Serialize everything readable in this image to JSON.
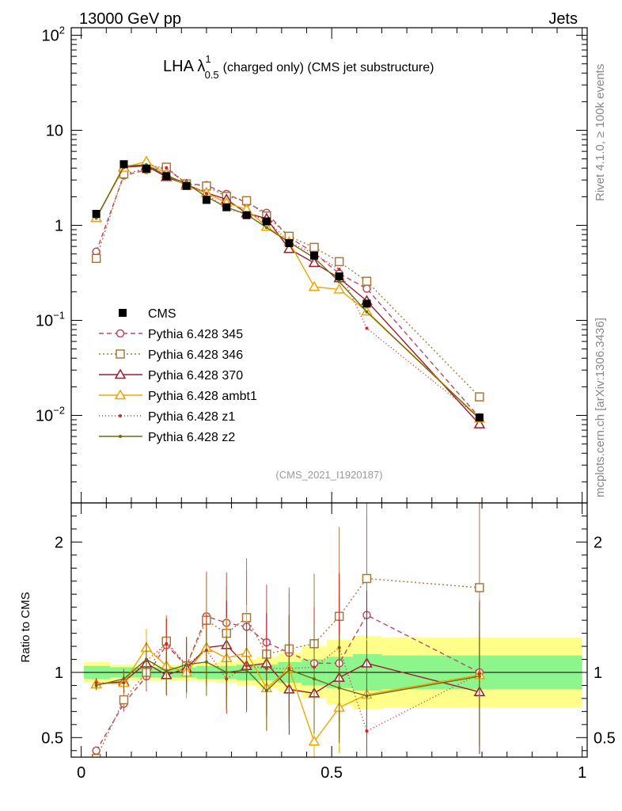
{
  "header": {
    "left": "13000 GeV pp",
    "right": "Jets",
    "rivet": "Rivet 4.1.0, ≥ 100k events",
    "mcplots": "mcplots.cern.ch [arXiv:1306.3436]"
  },
  "chart_data": {
    "type": "line",
    "title_main": "LHA λ",
    "title_sup": "1",
    "title_sub": "0.5",
    "title_rest": "(charged only) (CMS jet substructure)",
    "analysis_id": "(CMS_2021_I1920187)",
    "ylabel_ratio": "Ratio to CMS",
    "xlim": [
      -0.02,
      1.01
    ],
    "ylim_main": [
      0.0012,
      120
    ],
    "ylim_ratio": [
      0.35,
      2.3
    ],
    "main_ytick_labels": [
      "10^-2",
      "10^-1",
      "1",
      "10",
      "10^2"
    ],
    "x_tick_labels": [
      "0",
      "0.5",
      "1"
    ],
    "ratio_tick_labels": [
      "0.5",
      "1",
      "2"
    ],
    "x": [
      0.03,
      0.085,
      0.13,
      0.17,
      0.21,
      0.25,
      0.29,
      0.33,
      0.37,
      0.415,
      0.465,
      0.515,
      0.57,
      0.795
    ],
    "cms": {
      "name": "CMS",
      "values": [
        1.32,
        4.4,
        3.95,
        3.3,
        2.6,
        1.85,
        1.55,
        1.28,
        1.1,
        0.65,
        0.48,
        0.29,
        0.15,
        0.0095
      ],
      "band_inner": [
        0.05,
        0.04,
        0.04,
        0.04,
        0.04,
        0.05,
        0.05,
        0.06,
        0.06,
        0.08,
        0.1,
        0.12,
        0.14,
        0.13
      ],
      "band_outer": [
        0.08,
        0.06,
        0.06,
        0.06,
        0.06,
        0.07,
        0.08,
        0.1,
        0.12,
        0.15,
        0.2,
        0.25,
        0.28,
        0.27
      ]
    },
    "series": [
      {
        "name": "Pythia 6.428 345",
        "color": "#b84a62",
        "dash": "6,4",
        "marker": "circle",
        "ratio": [
          0.4,
          0.76,
          0.97,
          1.21,
          1.05,
          1.43,
          1.38,
          1.35,
          1.23,
          1.15,
          1.07,
          1.07,
          1.44,
          1.0
        ]
      },
      {
        "name": "Pythia 6.428 346",
        "color": "#a8783a",
        "dash": "2,3",
        "marker": "square",
        "ratio": [
          0.34,
          0.79,
          1.0,
          1.24,
          1.05,
          1.4,
          1.3,
          1.42,
          1.14,
          1.18,
          1.22,
          1.43,
          1.72,
          1.65
        ]
      },
      {
        "name": "Pythia 6.428 370",
        "color": "#9a1d2c",
        "dash": "",
        "marker": "triangle",
        "ratio": [
          0.91,
          0.93,
          1.07,
          0.98,
          1.03,
          1.19,
          1.21,
          1.05,
          1.07,
          0.87,
          0.84,
          0.96,
          1.07,
          0.85
        ]
      },
      {
        "name": "Pythia 6.428 ambt1",
        "color": "#f0a500",
        "dash": "",
        "marker": "triangle",
        "ratio": [
          0.91,
          0.92,
          1.19,
          1.05,
          1.0,
          1.19,
          1.11,
          1.15,
          0.88,
          1.03,
          0.47,
          0.73,
          0.83,
          0.98
        ]
      },
      {
        "name": "Pythia 6.428 z1",
        "color": "#dd2222",
        "dash": "1,3",
        "marker": "dot",
        "ratio": [
          0.92,
          0.92,
          1.09,
          1.22,
          1.06,
          1.17,
          0.95,
          1.05,
          1.03,
          1.03,
          1.04,
          1.19,
          0.55,
          0.99
        ]
      },
      {
        "name": "Pythia 6.428 z2",
        "color": "#6b6b12",
        "dash": "",
        "marker": "dot",
        "ratio": [
          0.9,
          0.95,
          1.1,
          1.01,
          1.06,
          1.08,
          1.0,
          1.02,
          0.86,
          1.02,
          0.95,
          0.88,
          0.82,
          0.97
        ]
      }
    ]
  }
}
